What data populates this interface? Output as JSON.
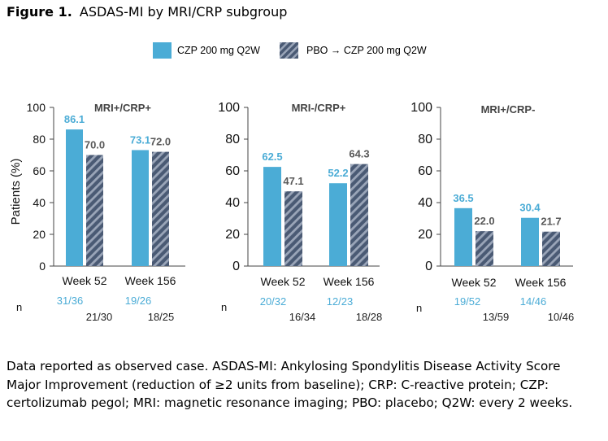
{
  "title": {
    "label": "Figure 1.",
    "text": "ASDAS-MI by MRI/CRP subgroup"
  },
  "legend": [
    {
      "label": "CZP 200 mg Q2W",
      "color": "#4bacd6",
      "pattern": "solid"
    },
    {
      "label": "PBO → CZP 200 mg Q2W",
      "color": "#4a5a74",
      "pattern": "hatched"
    }
  ],
  "n_label": "n",
  "footnote": "Data reported as observed case. ASDAS-MI: Ankylosing Spondylitis Disease Activity Score Major Improvement (reduction of ≥2 units from baseline); CRP: C-reactive protein; CZP: certolizumab pegol; MRI: magnetic resonance imaging; PBO: placebo; Q2W: every 2 weeks.",
  "chart_data": [
    {
      "type": "bar",
      "title": "MRI+/CRP+",
      "ylabel": "Patients (%)",
      "ylim": [
        0,
        100
      ],
      "yticks": [
        "0",
        "20",
        "40",
        "60",
        "80",
        "100"
      ],
      "categories": [
        "Week 52",
        "Week 156"
      ],
      "series": [
        {
          "name": "CZP 200 mg Q2W",
          "values": [
            86.1,
            73.1
          ],
          "labels": [
            "86.1",
            "73.1"
          ],
          "n": [
            "31/36",
            "19/26"
          ]
        },
        {
          "name": "PBO → CZP 200 mg Q2W",
          "values": [
            70.0,
            72.0
          ],
          "labels": [
            "70.0",
            "72.0"
          ],
          "n": [
            "21/30",
            "18/25"
          ]
        }
      ]
    },
    {
      "type": "bar",
      "title": "MRI-/CRP+",
      "ylabel": "",
      "ylim": [
        0,
        100
      ],
      "yticks": [
        "0",
        "20",
        "40",
        "60",
        "80",
        "100"
      ],
      "categories": [
        "Week 52",
        "Week 156"
      ],
      "series": [
        {
          "name": "CZP 200 mg Q2W",
          "values": [
            62.5,
            52.2
          ],
          "labels": [
            "62.5",
            "52.2"
          ],
          "n": [
            "20/32",
            "12/23"
          ]
        },
        {
          "name": "PBO → CZP 200 mg Q2W",
          "values": [
            47.1,
            64.3
          ],
          "labels": [
            "47.1",
            "64.3"
          ],
          "n": [
            "16/34",
            "18/28"
          ]
        }
      ]
    },
    {
      "type": "bar",
      "title": "MRI+/CRP-",
      "ylabel": "",
      "ylim": [
        0,
        100
      ],
      "yticks": [
        "0",
        "20",
        "40",
        "60",
        "80",
        "100"
      ],
      "categories": [
        "Week 52",
        "Week 156"
      ],
      "series": [
        {
          "name": "CZP 200 mg Q2W",
          "values": [
            36.5,
            30.4
          ],
          "labels": [
            "36.5",
            "30.4"
          ],
          "n": [
            "19/52",
            "14/46"
          ]
        },
        {
          "name": "PBO → CZP 200 mg Q2W",
          "values": [
            22.0,
            21.7
          ],
          "labels": [
            "22.0",
            "21.7"
          ],
          "n": [
            "13/59",
            "10/46"
          ]
        }
      ]
    }
  ]
}
